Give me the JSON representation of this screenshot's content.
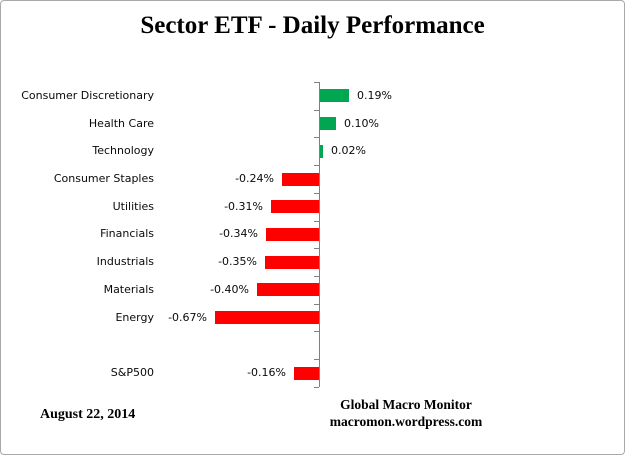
{
  "title": "Sector ETF - Daily Performance",
  "footer": {
    "date": "August 22, 2014",
    "source_line1": "Global Macro Monitor",
    "source_line2": "macromon.wordpress.com"
  },
  "chart_data": {
    "type": "bar",
    "orientation": "horizontal",
    "title": "Sector ETF - Daily Performance",
    "xlabel": "",
    "ylabel": "",
    "units": "percent",
    "categories": [
      "Consumer Discretionary",
      "Health Care",
      "Technology",
      "Consumer Staples",
      "Utilities",
      "Financials",
      "Industrials",
      "Materials",
      "Energy",
      "",
      "S&P500"
    ],
    "values": [
      0.19,
      0.1,
      0.02,
      -0.24,
      -0.31,
      -0.34,
      -0.35,
      -0.4,
      -0.67,
      null,
      -0.16
    ],
    "value_labels": [
      "0.19%",
      "0.10%",
      "0.02%",
      "-0.24%",
      "-0.31%",
      "-0.34%",
      "-0.35%",
      "-0.40%",
      "-0.67%",
      "",
      "-0.16%"
    ],
    "grid": false,
    "legend": false,
    "label_position": "outside-end",
    "colors": {
      "positive_bar": "#00A651",
      "negative_bar": "#FF0000",
      "axis": "#808080",
      "text": "#0A0A0A",
      "frame_border": "#A9A9A9"
    }
  }
}
